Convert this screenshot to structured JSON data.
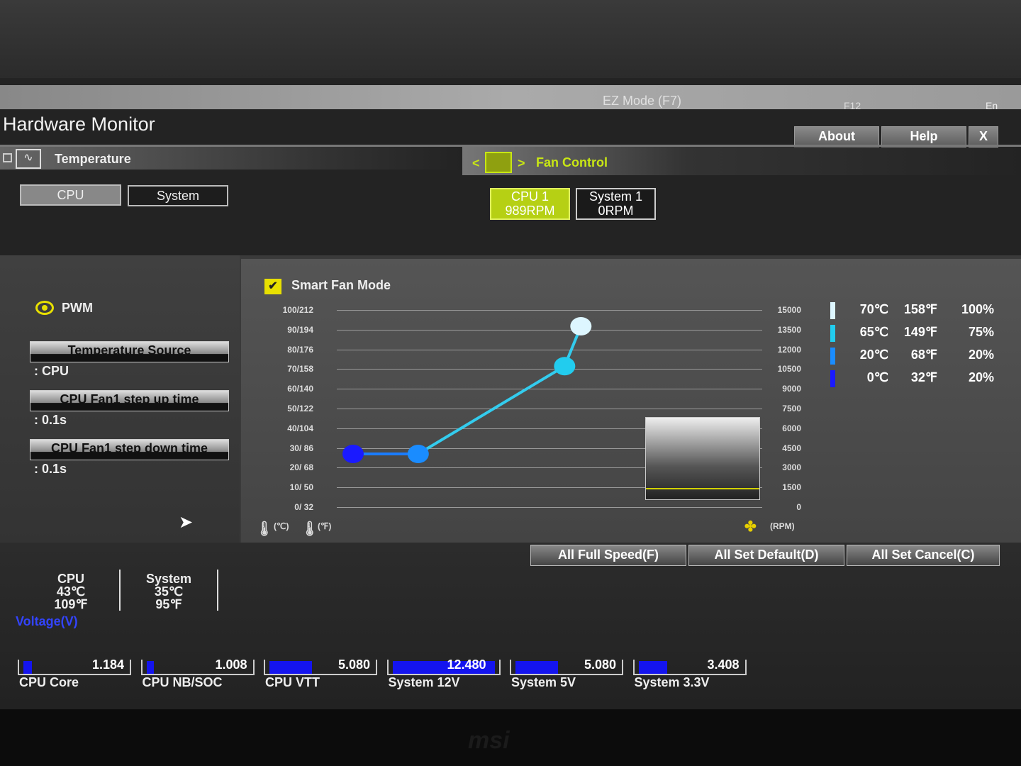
{
  "topbar": {
    "ez_mode": "EZ Mode (F7)",
    "f12": "F12",
    "lang": "En"
  },
  "title": "Hardware Monitor",
  "buttons": {
    "about": "About",
    "help": "Help",
    "close": "X"
  },
  "temperature": {
    "label": "Temperature",
    "tabs": [
      "CPU",
      "System"
    ],
    "selected": "CPU"
  },
  "fan_control": {
    "label": "Fan Control",
    "fans": [
      {
        "name": "CPU 1",
        "rpm": "989RPM",
        "selected": true
      },
      {
        "name": "System 1",
        "rpm": "0RPM",
        "selected": false
      }
    ]
  },
  "left": {
    "mode": "PWM",
    "settings": [
      {
        "label": "Temperature Source",
        "value": ": CPU"
      },
      {
        "label": "CPU Fan1 step up time",
        "value": ": 0.1s"
      },
      {
        "label": "CPU Fan1 step down time",
        "value": ": 0.1s"
      }
    ]
  },
  "chart": {
    "smart_fan_label": "Smart Fan Mode",
    "smart_fan_checked": true,
    "left_ticks": [
      "100/212",
      "90/194",
      "80/176",
      "70/158",
      "60/140",
      "50/122",
      "40/104",
      "30/ 86",
      "20/ 68",
      "10/ 50",
      "0/ 32"
    ],
    "right_ticks": [
      "15000",
      "13500",
      "12000",
      "10500",
      "9000",
      "7500",
      "6000",
      "4500",
      "3000",
      "1500",
      "0"
    ],
    "unit_c": "(℃)",
    "unit_f": "(℉)",
    "unit_rpm": "(RPM)"
  },
  "chart_data": {
    "type": "line",
    "points": [
      {
        "temp_c": 0,
        "fan_pct": 20
      },
      {
        "temp_c": 20,
        "fan_pct": 20
      },
      {
        "temp_c": 65,
        "fan_pct": 75
      },
      {
        "temp_c": 70,
        "fan_pct": 100
      }
    ],
    "colors": [
      "#1a1aff",
      "#1a8cff",
      "#22ccee",
      "#ddf6ff"
    ]
  },
  "legend": [
    {
      "c": "70℃",
      "f": "158℉",
      "pct": "100%",
      "color": "#ddf6ff"
    },
    {
      "c": "65℃",
      "f": "149℉",
      "pct": "75%",
      "color": "#22ccee"
    },
    {
      "c": "20℃",
      "f": "68℉",
      "pct": "20%",
      "color": "#1a8cff"
    },
    {
      "c": "0℃",
      "f": "32℉",
      "pct": "20%",
      "color": "#1a1aff"
    }
  ],
  "actions": [
    "All Full Speed(F)",
    "All Set Default(D)",
    "All Set Cancel(C)"
  ],
  "temps": [
    {
      "name": "CPU",
      "c": "43℃",
      "f": "109℉"
    },
    {
      "name": "System",
      "c": "35℃",
      "f": "95℉"
    }
  ],
  "voltage": {
    "title": "Voltage(V)",
    "items": [
      {
        "name": "CPU Core",
        "value": "1.184",
        "level": 0.08
      },
      {
        "name": "CPU NB/SOC",
        "value": "1.008",
        "level": 0.07
      },
      {
        "name": "CPU VTT",
        "value": "5.080",
        "level": 0.4
      },
      {
        "name": "System 12V",
        "value": "12.480",
        "level": 0.96
      },
      {
        "name": "System 5V",
        "value": "5.080",
        "level": 0.4
      },
      {
        "name": "System 3.3V",
        "value": "3.408",
        "level": 0.27
      }
    ]
  },
  "accent": "#c8e614"
}
